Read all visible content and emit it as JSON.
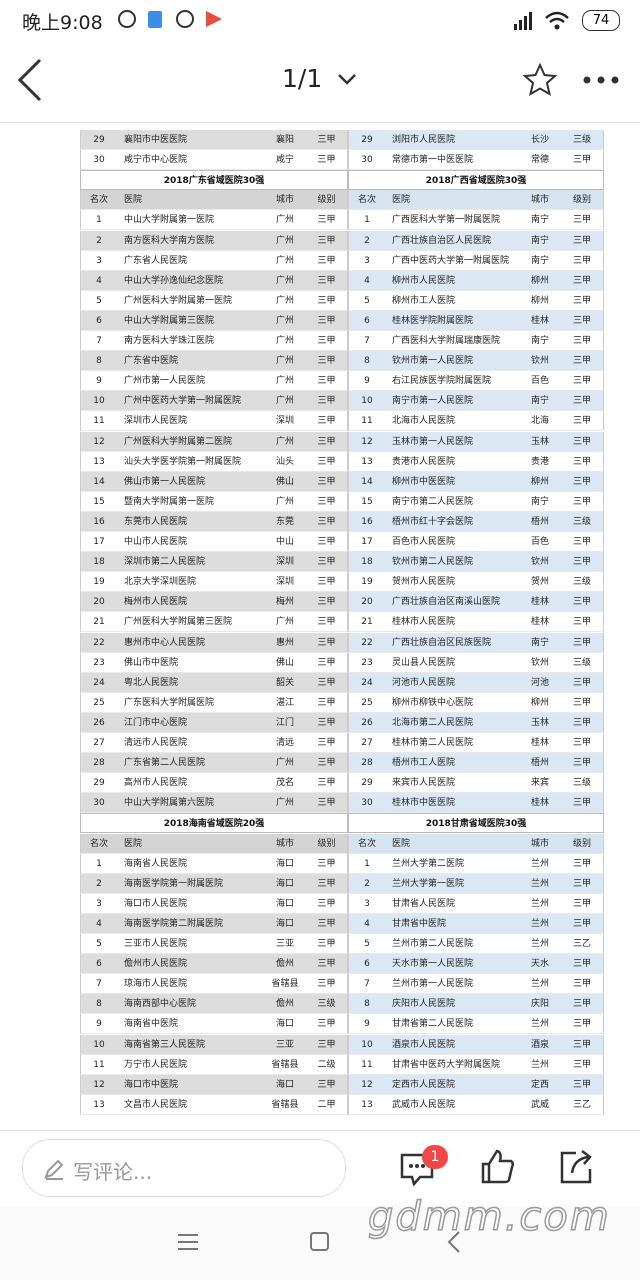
{
  "status_bar": {
    "time": "晚上9:08",
    "battery": "74"
  },
  "top_bar": {
    "page": "1/1"
  },
  "top_rows": {
    "left": [
      [
        "29",
        "襄阳市中医医院",
        "襄阳",
        "三甲"
      ],
      [
        "30",
        "咸宁市中心医院",
        "咸宁",
        "三甲"
      ]
    ],
    "right": [
      [
        "29",
        "浏阳市人民医院",
        "长沙",
        "三级"
      ],
      [
        "30",
        "常德市第一中医医院",
        "常德",
        "三甲"
      ]
    ]
  },
  "sections": [
    {
      "left": {
        "title": "2018广东省域医院30强",
        "header": [
          "名次",
          "医院",
          "城市",
          "级别"
        ],
        "rows": [
          [
            "1",
            "中山大学附属第一医院",
            "广州",
            "三甲"
          ],
          [
            "2",
            "南方医科大学南方医院",
            "广州",
            "三甲"
          ],
          [
            "3",
            "广东省人民医院",
            "广州",
            "三甲"
          ],
          [
            "4",
            "中山大学孙逸仙纪念医院",
            "广州",
            "三甲"
          ],
          [
            "5",
            "广州医科大学附属第一医院",
            "广州",
            "三甲"
          ],
          [
            "6",
            "中山大学附属第三医院",
            "广州",
            "三甲"
          ],
          [
            "7",
            "南方医科大学珠江医院",
            "广州",
            "三甲"
          ],
          [
            "8",
            "广东省中医院",
            "广州",
            "三甲"
          ],
          [
            "9",
            "广州市第一人民医院",
            "广州",
            "三甲"
          ],
          [
            "10",
            "广州中医药大学第一附属医院",
            "广州",
            "三甲"
          ],
          [
            "11",
            "深圳市人民医院",
            "深圳",
            "三甲"
          ],
          [
            "12",
            "广州医科大学附属第二医院",
            "广州",
            "三甲"
          ],
          [
            "13",
            "汕头大学医学院第一附属医院",
            "汕头",
            "三甲"
          ],
          [
            "14",
            "佛山市第一人民医院",
            "佛山",
            "三甲"
          ],
          [
            "15",
            "暨南大学附属第一医院",
            "广州",
            "三甲"
          ],
          [
            "16",
            "东莞市人民医院",
            "东莞",
            "三甲"
          ],
          [
            "17",
            "中山市人民医院",
            "中山",
            "三甲"
          ],
          [
            "18",
            "深圳市第二人民医院",
            "深圳",
            "三甲"
          ],
          [
            "19",
            "北京大学深圳医院",
            "深圳",
            "三甲"
          ],
          [
            "20",
            "梅州市人民医院",
            "梅州",
            "三甲"
          ],
          [
            "21",
            "广州医科大学附属第三医院",
            "广州",
            "三甲"
          ],
          [
            "22",
            "惠州市中心人民医院",
            "惠州",
            "三甲"
          ],
          [
            "23",
            "佛山市中医院",
            "佛山",
            "三甲"
          ],
          [
            "24",
            "粤北人民医院",
            "韶关",
            "三甲"
          ],
          [
            "25",
            "广东医科大学附属医院",
            "湛江",
            "三甲"
          ],
          [
            "26",
            "江门市中心医院",
            "江门",
            "三甲"
          ],
          [
            "27",
            "清远市人民医院",
            "清远",
            "三甲"
          ],
          [
            "28",
            "广东省第二人民医院",
            "广州",
            "三甲"
          ],
          [
            "29",
            "高州市人民医院",
            "茂名",
            "三甲"
          ],
          [
            "30",
            "中山大学附属第六医院",
            "广州",
            "三甲"
          ]
        ]
      },
      "right": {
        "title": "2018广西省域医院30强",
        "header": [
          "名次",
          "医院",
          "城市",
          "级别"
        ],
        "rows": [
          [
            "1",
            "广西医科大学第一附属医院",
            "南宁",
            "三甲"
          ],
          [
            "2",
            "广西壮族自治区人民医院",
            "南宁",
            "三甲"
          ],
          [
            "3",
            "广西中医药大学第一附属医院",
            "南宁",
            "三甲"
          ],
          [
            "4",
            "柳州市人民医院",
            "柳州",
            "三甲"
          ],
          [
            "5",
            "柳州市工人医院",
            "柳州",
            "三甲"
          ],
          [
            "6",
            "桂林医学院附属医院",
            "桂林",
            "三甲"
          ],
          [
            "7",
            "广西医科大学附属瑞康医院",
            "南宁",
            "三甲"
          ],
          [
            "8",
            "钦州市第一人民医院",
            "钦州",
            "三甲"
          ],
          [
            "9",
            "右江民族医学院附属医院",
            "百色",
            "三甲"
          ],
          [
            "10",
            "南宁市第一人民医院",
            "南宁",
            "三甲"
          ],
          [
            "11",
            "北海市人民医院",
            "北海",
            "三甲"
          ],
          [
            "12",
            "玉林市第一人民医院",
            "玉林",
            "三甲"
          ],
          [
            "13",
            "贵港市人民医院",
            "贵港",
            "三甲"
          ],
          [
            "14",
            "柳州市中医医院",
            "柳州",
            "三甲"
          ],
          [
            "15",
            "南宁市第二人民医院",
            "南宁",
            "三甲"
          ],
          [
            "16",
            "梧州市红十字会医院",
            "梧州",
            "三级"
          ],
          [
            "17",
            "百色市人民医院",
            "百色",
            "三甲"
          ],
          [
            "18",
            "钦州市第二人民医院",
            "钦州",
            "三甲"
          ],
          [
            "19",
            "贺州市人民医院",
            "贺州",
            "三级"
          ],
          [
            "20",
            "广西壮族自治区南溪山医院",
            "桂林",
            "三甲"
          ],
          [
            "21",
            "桂林市人民医院",
            "桂林",
            "三甲"
          ],
          [
            "22",
            "广西壮族自治区民族医院",
            "南宁",
            "三甲"
          ],
          [
            "23",
            "灵山县人民医院",
            "钦州",
            "三级"
          ],
          [
            "24",
            "河池市人民医院",
            "河池",
            "三甲"
          ],
          [
            "25",
            "柳州市柳铁中心医院",
            "柳州",
            "三甲"
          ],
          [
            "26",
            "北海市第二人民医院",
            "玉林",
            "三甲"
          ],
          [
            "27",
            "桂林市第二人民医院",
            "桂林",
            "三甲"
          ],
          [
            "28",
            "梧州市工人医院",
            "梧州",
            "三甲"
          ],
          [
            "29",
            "来宾市人民医院",
            "来宾",
            "三级"
          ],
          [
            "30",
            "桂林市中医医院",
            "桂林",
            "三甲"
          ]
        ]
      }
    },
    {
      "left": {
        "title": "2018海南省域医院20强",
        "header": [
          "名次",
          "医院",
          "城市",
          "级别"
        ],
        "rows": [
          [
            "1",
            "海南省人民医院",
            "海口",
            "三甲"
          ],
          [
            "2",
            "海南医学院第一附属医院",
            "海口",
            "三甲"
          ],
          [
            "3",
            "海口市人民医院",
            "海口",
            "三甲"
          ],
          [
            "4",
            "海南医学院第二附属医院",
            "海口",
            "三甲"
          ],
          [
            "5",
            "三亚市人民医院",
            "三亚",
            "三甲"
          ],
          [
            "6",
            "儋州市人民医院",
            "儋州",
            "三甲"
          ],
          [
            "7",
            "琼海市人民医院",
            "省辖县",
            "三甲"
          ],
          [
            "8",
            "海南西部中心医院",
            "儋州",
            "三级"
          ],
          [
            "9",
            "海南省中医院",
            "海口",
            "三甲"
          ],
          [
            "10",
            "海南省第三人民医院",
            "三亚",
            "三甲"
          ],
          [
            "11",
            "万宁市人民医院",
            "省辖县",
            "二级"
          ],
          [
            "12",
            "海口市中医院",
            "海口",
            "三甲"
          ],
          [
            "13",
            "文昌市人民医院",
            "省辖县",
            "二甲"
          ]
        ]
      },
      "right": {
        "title": "2018甘肃省域医院30强",
        "header": [
          "名次",
          "医院",
          "城市",
          "级别"
        ],
        "rows": [
          [
            "1",
            "兰州大学第二医院",
            "兰州",
            "三甲"
          ],
          [
            "2",
            "兰州大学第一医院",
            "兰州",
            "三甲"
          ],
          [
            "3",
            "甘肃省人民医院",
            "兰州",
            "三甲"
          ],
          [
            "4",
            "甘肃省中医院",
            "兰州",
            "三甲"
          ],
          [
            "5",
            "兰州市第二人民医院",
            "兰州",
            "三乙"
          ],
          [
            "6",
            "天水市第一人民医院",
            "天水",
            "三甲"
          ],
          [
            "7",
            "兰州市第一人民医院",
            "兰州",
            "三甲"
          ],
          [
            "8",
            "庆阳市人民医院",
            "庆阳",
            "三甲"
          ],
          [
            "9",
            "甘肃省第二人民医院",
            "兰州",
            "三甲"
          ],
          [
            "10",
            "酒泉市人民医院",
            "酒泉",
            "三甲"
          ],
          [
            "11",
            "甘肃省中医药大学附属医院",
            "兰州",
            "三甲"
          ],
          [
            "12",
            "定西市人民医院",
            "定西",
            "三甲"
          ],
          [
            "13",
            "武威市人民医院",
            "武威",
            "三乙"
          ]
        ]
      }
    }
  ],
  "bottom_bar": {
    "comment_placeholder": "写评论...",
    "badge": "1"
  },
  "watermark": "gdmm.com"
}
